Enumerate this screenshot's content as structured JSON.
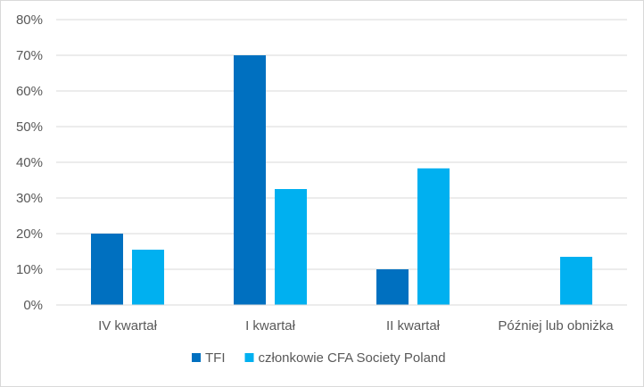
{
  "chart_data": {
    "type": "bar",
    "title": "",
    "xlabel": "",
    "ylabel": "",
    "categories": [
      "IV kwartał",
      "I kwartał",
      "II kwartał",
      "Później lub obniżka"
    ],
    "series": [
      {
        "name": "TFI",
        "values": [
          20,
          70,
          10,
          0
        ],
        "color": "#0070C0"
      },
      {
        "name": "członkowie CFA Society Poland",
        "values": [
          15.5,
          32.5,
          38.3,
          13.5
        ],
        "color": "#00B0F0"
      }
    ],
    "ylim": [
      0,
      80
    ],
    "yticks": [
      "0%",
      "10%",
      "20%",
      "30%",
      "40%",
      "50%",
      "60%",
      "70%",
      "80%"
    ],
    "grid": true,
    "legend_position": "bottom"
  }
}
